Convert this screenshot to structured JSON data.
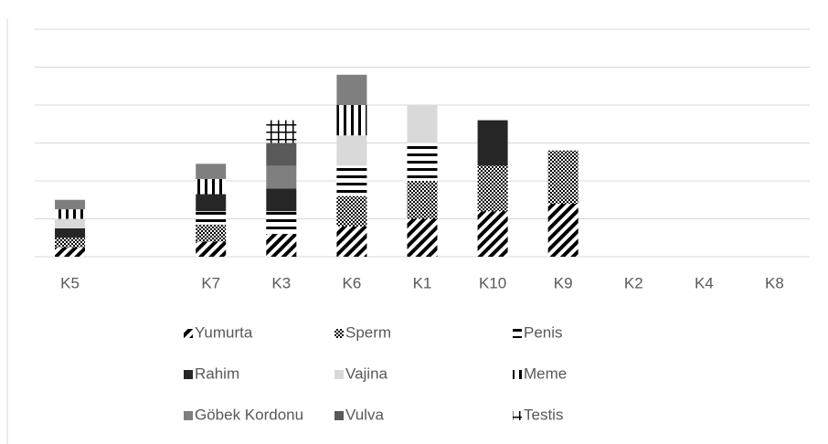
{
  "chart_data": {
    "type": "stacked_bar",
    "categories": [
      "K5",
      null,
      "K7",
      "K3",
      "K6",
      "K1",
      "K10",
      "K9",
      "K2",
      "K4",
      "K8"
    ],
    "series": [
      {
        "name": "Yumurta",
        "color": "#000000",
        "pattern": "diagonal",
        "values": [
          0.5,
          null,
          0.8,
          1.2,
          1.6,
          2,
          2.4,
          2.8,
          0,
          0,
          0
        ]
      },
      {
        "name": "Sperm",
        "color": "#000000",
        "pattern": "checker",
        "values": [
          0.5,
          null,
          0.9,
          0,
          1.6,
          2,
          2.4,
          2.8,
          0,
          0,
          0
        ]
      },
      {
        "name": "Penis",
        "color": "#000000",
        "pattern": "hlines",
        "values": [
          0,
          null,
          0.7,
          1.2,
          1.6,
          2,
          0,
          0,
          0,
          0,
          0
        ]
      },
      {
        "name": "Rahim",
        "color": "#262626",
        "pattern": "solid",
        "values": [
          0.5,
          null,
          0.9,
          1.2,
          0,
          0,
          2.4,
          0,
          0,
          0,
          0
        ]
      },
      {
        "name": "Vajina",
        "color": "#d9d9d9",
        "pattern": "solid",
        "values": [
          0.5,
          null,
          0,
          0,
          1.6,
          2,
          0,
          0,
          0,
          0,
          0
        ]
      },
      {
        "name": "Meme",
        "color": "#000000",
        "pattern": "vlines",
        "values": [
          0.5,
          null,
          0.8,
          0,
          1.6,
          0,
          0,
          0,
          0,
          0,
          0
        ]
      },
      {
        "name": "Göbek Kordonu",
        "color": "#7f7f7f",
        "pattern": "solid",
        "values": [
          0.5,
          null,
          0.8,
          1.2,
          1.6,
          0,
          0,
          0,
          0,
          0,
          0
        ]
      },
      {
        "name": "Vulva",
        "color": "#595959",
        "pattern": "solid",
        "values": [
          0,
          null,
          0,
          1.2,
          0,
          0,
          0,
          0,
          0,
          0,
          0
        ]
      },
      {
        "name": "Testis",
        "color": "#000000",
        "pattern": "grid",
        "values": [
          0,
          null,
          0,
          1.2,
          0,
          0,
          0,
          0,
          0,
          0,
          0
        ]
      }
    ],
    "ylim": [
      0,
      12
    ],
    "yticks": [
      0,
      2,
      4,
      6,
      8,
      10,
      12
    ],
    "grid": true,
    "legend": "bottom"
  }
}
